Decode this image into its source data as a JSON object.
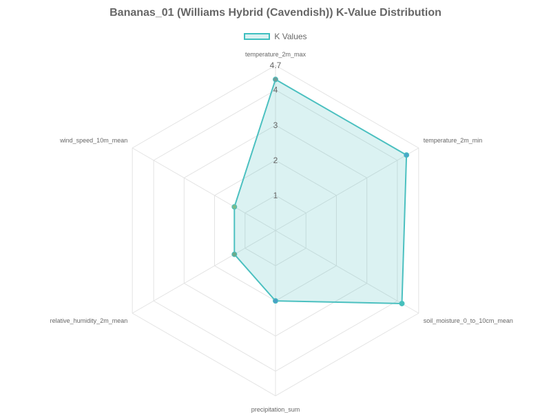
{
  "chart_title": "Bananas_01 (Williams Hybrid (Cavendish)) K-Value Distribution",
  "legend": {
    "label": "K Values",
    "border_color": "#4bc0c0",
    "fill_color": "rgba(75, 192, 192, 0.2)"
  },
  "chart_data": {
    "type": "radar",
    "title": "Bananas_01 (Williams Hybrid (Cavendish)) K-Value Distribution",
    "categories": [
      "temperature_2m_max",
      "temperature_2m_min",
      "soil_moisture_0_to_10cm_mean",
      "precipitation_sum",
      "relative_humidity_2m_mean",
      "wind_speed_10m_mean"
    ],
    "series": [
      {
        "name": "K Values",
        "values": [
          4.3,
          4.3,
          4.15,
          2.0,
          1.35,
          1.35
        ],
        "point_colors": [
          "#6e9e9a",
          "#4aa6c9",
          "#45c0bc",
          "#4a9fc6",
          "#6bab8c",
          "#7aba8a"
        ]
      }
    ],
    "r_max": 4.7,
    "ticks": [
      "1",
      "2",
      "3",
      "4",
      "4.7"
    ],
    "tick_values": [
      1,
      2,
      3,
      4,
      4.7
    ],
    "grid": true
  }
}
